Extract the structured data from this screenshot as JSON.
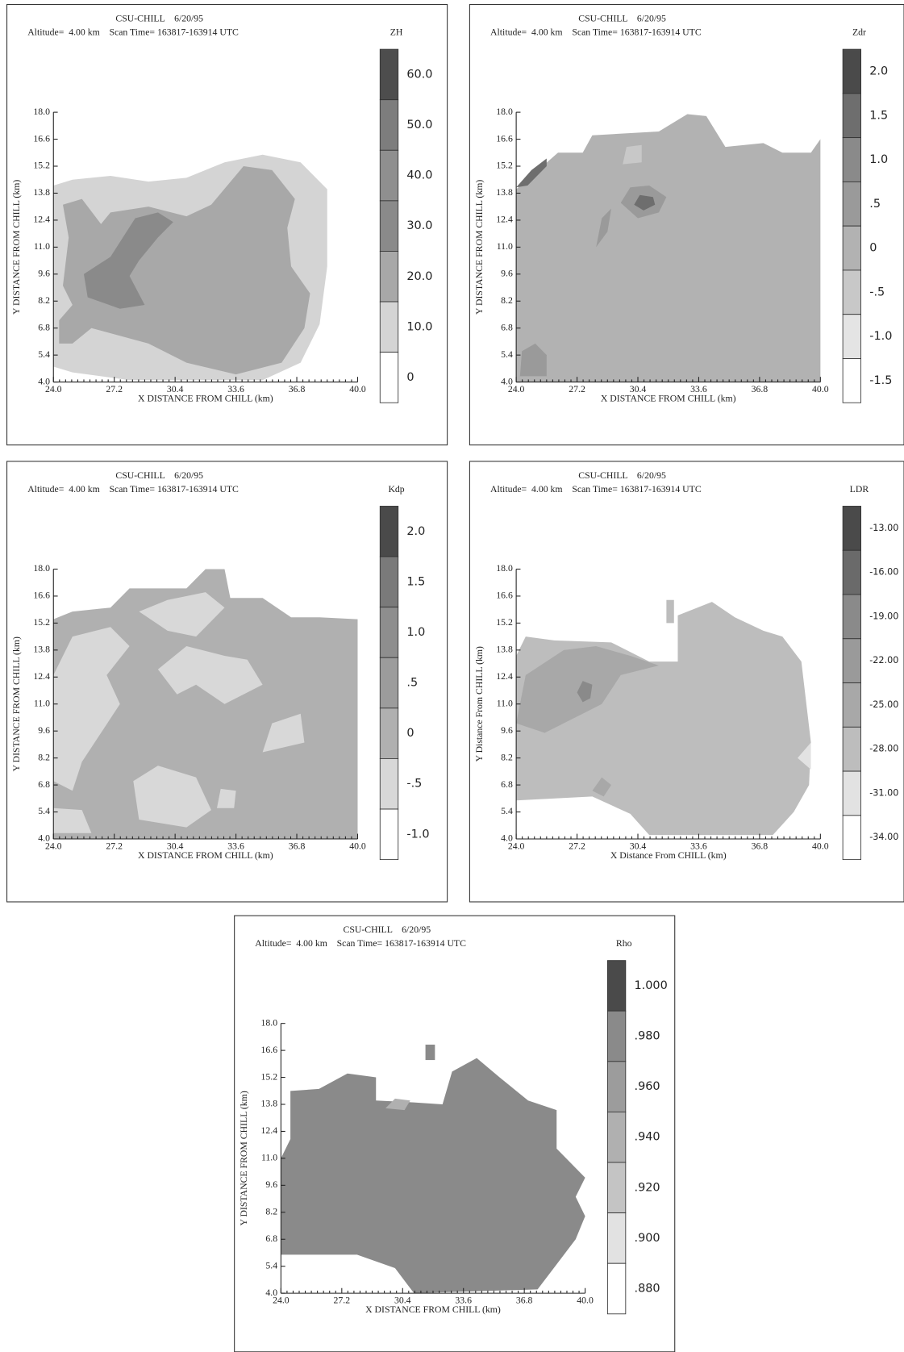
{
  "chart_data": [
    {
      "type": "contour",
      "title": "CSU-CHILL    6/20/95",
      "subtitle": "Altitude=  4.00 km    Scan Time= 163817-163914 UTC",
      "x_label": "X DISTANCE FROM CHILL (km)",
      "y_label": "Y DISTANCE FROM CHILL (km)",
      "xlim": [
        24,
        40
      ],
      "ylim": [
        4,
        18
      ],
      "xticks": [
        {
          "value": 24,
          "label": "24.0"
        },
        27.2,
        30.4,
        33.6,
        36.8,
        {
          "value": 40,
          "label": "40.0"
        }
      ],
      "yticks": [
        {
          "value": 4,
          "label": "4.0"
        },
        5.4,
        6.8,
        8.2,
        9.6,
        {
          "value": 11,
          "label": "11.0"
        },
        12.4,
        13.8,
        15.2,
        16.6,
        {
          "value": 18,
          "label": "18.0"
        }
      ],
      "colorbar": {
        "label": "ZH",
        "ticks": [
          {
            "value": 60,
            "label": "60.0"
          },
          {
            "value": 50,
            "label": "50.0"
          },
          {
            "value": 40,
            "label": "40.0"
          },
          {
            "value": 30,
            "label": "30.0"
          },
          {
            "value": 20,
            "label": "20.0"
          },
          {
            "value": 10,
            "label": "10.0"
          },
          0
        ],
        "colors": [
          "#4d4d4d",
          "#7d7d7d",
          "#8f8f8f",
          "#8a8a8a",
          "#a8a8a8",
          "#d4d4d4",
          "#ffffff"
        ]
      }
    },
    {
      "type": "contour",
      "title": "CSU-CHILL    6/20/95",
      "subtitle": "Altitude=  4.00 km    Scan Time= 163817-163914 UTC",
      "x_label": "X DISTANCE FROM CHILL (km)",
      "y_label": "Y DISTANCE FROM CHILL (km)",
      "xlim": [
        24,
        40
      ],
      "ylim": [
        4,
        18
      ],
      "xticks": [
        {
          "value": 24,
          "label": "24.0"
        },
        27.2,
        30.4,
        33.6,
        36.8,
        {
          "value": 40,
          "label": "40.0"
        }
      ],
      "yticks": [
        {
          "value": 4,
          "label": "4.0"
        },
        5.4,
        6.8,
        8.2,
        9.6,
        {
          "value": 11,
          "label": "11.0"
        },
        12.4,
        13.8,
        15.2,
        16.6,
        {
          "value": 18,
          "label": "18.0"
        }
      ],
      "colorbar": {
        "label": "Zdr",
        "ticks": [
          {
            "value": 2,
            "label": "2.0"
          },
          1.5,
          {
            "value": 1,
            "label": "1.0"
          },
          {
            "value": 0.5,
            "label": ".5"
          },
          0,
          {
            "value": -0.5,
            "label": "-.5"
          },
          {
            "value": -1,
            "label": "-1.0"
          },
          -1.5
        ],
        "colors": [
          "#4a4a4a",
          "#6e6e6e",
          "#8a8a8a",
          "#9a9a9a",
          "#b2b2b2",
          "#c8c8c8",
          "#e4e4e4",
          "#ffffff"
        ]
      }
    },
    {
      "type": "contour",
      "title": "CSU-CHILL    6/20/95",
      "subtitle": "Altitude=  4.00 km    Scan Time= 163817-163914 UTC",
      "x_label": "X DISTANCE FROM CHILL (km)",
      "y_label": "Y DISTANCE FROM CHILL (km)",
      "xlim": [
        24,
        40
      ],
      "ylim": [
        4,
        18
      ],
      "xticks": [
        {
          "value": 24,
          "label": "24.0"
        },
        27.2,
        30.4,
        33.6,
        36.8,
        {
          "value": 40,
          "label": "40.0"
        }
      ],
      "yticks": [
        {
          "value": 4,
          "label": "4.0"
        },
        5.4,
        6.8,
        8.2,
        9.6,
        {
          "value": 11,
          "label": "11.0"
        },
        12.4,
        13.8,
        15.2,
        16.6,
        {
          "value": 18,
          "label": "18.0"
        }
      ],
      "colorbar": {
        "label": "Kdp",
        "ticks": [
          {
            "value": 2,
            "label": "2.0"
          },
          1.5,
          {
            "value": 1,
            "label": "1.0"
          },
          {
            "value": 0.5,
            "label": ".5"
          },
          0,
          {
            "value": -0.5,
            "label": "-.5"
          },
          {
            "value": -1,
            "label": "-1.0"
          }
        ],
        "colors": [
          "#4a4a4a",
          "#7a7a7a",
          "#8e8e8e",
          "#9c9c9c",
          "#b0b0b0",
          "#d8d8d8",
          "#ffffff"
        ]
      }
    },
    {
      "type": "contour",
      "title": "CSU-CHILL    6/20/95",
      "subtitle": "Altitude=  4.00 km    Scan Time= 163817-163914 UTC",
      "x_label": "X Distance From CHILL (km)",
      "y_label": "Y Distance From CHILL (km)",
      "xlim": [
        24,
        40
      ],
      "ylim": [
        4,
        18
      ],
      "xticks": [
        {
          "value": 24,
          "label": "24.0"
        },
        27.2,
        30.4,
        33.6,
        36.8,
        {
          "value": 40,
          "label": "40.0"
        }
      ],
      "yticks": [
        {
          "value": 4,
          "label": "4.0"
        },
        5.4,
        6.8,
        8.2,
        9.6,
        {
          "value": 11,
          "label": "11.0"
        },
        12.4,
        13.8,
        15.2,
        16.6,
        {
          "value": 18,
          "label": "18.0"
        }
      ],
      "colorbar": {
        "label": "LDR",
        "ticks": [
          {
            "value": -13,
            "label": "-13.00"
          },
          {
            "value": -16,
            "label": "-16.00"
          },
          {
            "value": -19,
            "label": "-19.00"
          },
          {
            "value": -22,
            "label": "-22.00"
          },
          {
            "value": -25,
            "label": "-25.00"
          },
          {
            "value": -28,
            "label": "-28.00"
          },
          {
            "value": -31,
            "label": "-31.00"
          },
          {
            "value": -34,
            "label": "-34.00"
          }
        ],
        "colors": [
          "#4a4a4a",
          "#6a6a6a",
          "#8a8a8a",
          "#9a9a9a",
          "#a8a8a8",
          "#bdbdbd",
          "#e2e2e2",
          "#ffffff"
        ]
      }
    },
    {
      "type": "contour",
      "title": "CSU-CHILL    6/20/95",
      "subtitle": "Altitude=  4.00 km    Scan Time= 163817-163914 UTC",
      "x_label": "X DISTANCE FROM CHILL (km)",
      "y_label": "Y DISTANCE FROM CHILL (km)",
      "xlim": [
        24,
        40
      ],
      "ylim": [
        4,
        18
      ],
      "xticks": [
        {
          "value": 24,
          "label": "24.0"
        },
        27.2,
        30.4,
        33.6,
        36.8,
        {
          "value": 40,
          "label": "40.0"
        }
      ],
      "yticks": [
        {
          "value": 4,
          "label": "4.0"
        },
        5.4,
        6.8,
        8.2,
        9.6,
        {
          "value": 11,
          "label": "11.0"
        },
        12.4,
        13.8,
        15.2,
        16.6,
        {
          "value": 18,
          "label": "18.0"
        }
      ],
      "colorbar": {
        "label": "Rho",
        "ticks": [
          {
            "value": 1,
            "label": "1.000"
          },
          {
            "value": 0.98,
            "label": ".980"
          },
          {
            "value": 0.96,
            "label": ".960"
          },
          {
            "value": 0.94,
            "label": ".940"
          },
          {
            "value": 0.92,
            "label": ".920"
          },
          {
            "value": 0.9,
            "label": ".900"
          },
          {
            "value": 0.88,
            "label": ".880"
          }
        ],
        "colors": [
          "#4a4a4a",
          "#8a8a8a",
          "#9c9c9c",
          "#b0b0b0",
          "#c4c4c4",
          "#e2e2e2",
          "#ffffff"
        ]
      }
    }
  ]
}
